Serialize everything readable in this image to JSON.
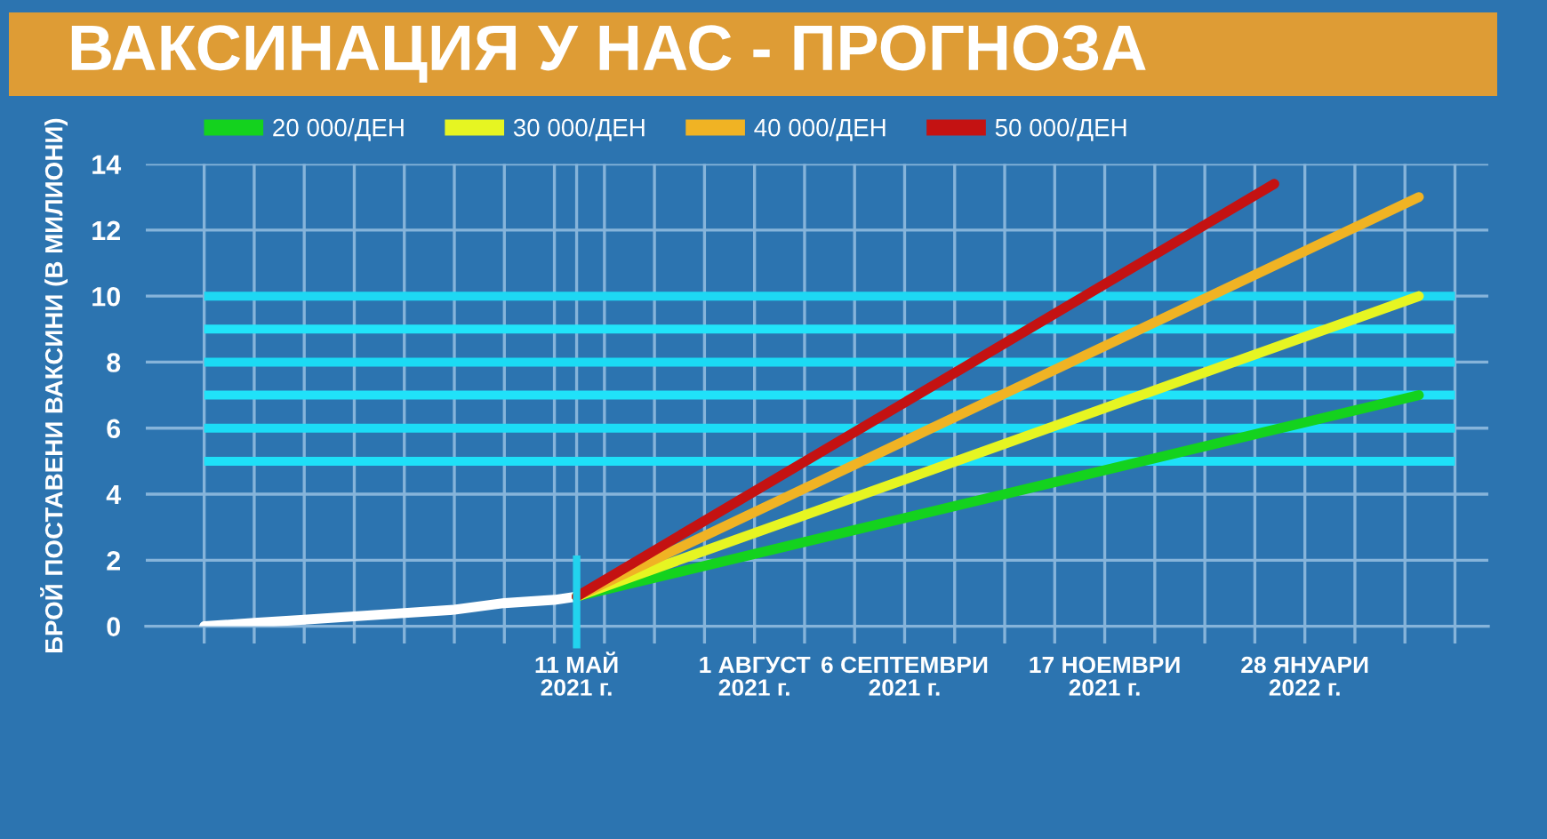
{
  "chart_data": {
    "type": "line",
    "title": "ВАКСИНАЦИЯ У НАС - ПРОГНОЗА",
    "ylabel": "БРОЙ ПОСТАВЕНИ ВАКСИНИ (В МИЛИОНИ)",
    "series": [
      {
        "color": "#ffffff",
        "x": [
          "2020-12-28",
          "2021-01-15",
          "2021-02-02",
          "2021-02-20",
          "2021-03-10",
          "2021-03-28",
          "2021-04-15",
          "2021-05-03",
          "2021-05-11"
        ],
        "values": [
          0.0,
          0.1,
          0.2,
          0.3,
          0.4,
          0.5,
          0.7,
          0.8,
          0.9
        ]
      },
      {
        "name": "20 000/ДЕН",
        "color": "#14d21e",
        "x": [
          "2021-05-11",
          "2022-03-10"
        ],
        "values": [
          0.9,
          7.0
        ]
      },
      {
        "name": "30 000/ДЕН",
        "color": "#e6f522",
        "x": [
          "2021-05-11",
          "2022-03-10"
        ],
        "values": [
          0.9,
          10.0
        ]
      },
      {
        "name": "40 000/ДЕН",
        "color": "#f0b324",
        "x": [
          "2021-05-11",
          "2022-03-10"
        ],
        "values": [
          0.9,
          13.0
        ]
      },
      {
        "name": "50 000/ДЕН",
        "color": "#c41212",
        "x": [
          "2021-05-11",
          "2022-01-17"
        ],
        "values": [
          0.9,
          13.4
        ]
      }
    ],
    "xlim": [
      "2020-12-07",
      "2022-04-04"
    ],
    "xticks": [
      {
        "value": "2020-12-28",
        "label": null
      },
      {
        "value": "2021-01-15",
        "label": null
      },
      {
        "value": "2021-02-02",
        "label": null
      },
      {
        "value": "2021-02-20",
        "label": null
      },
      {
        "value": "2021-03-10",
        "label": null
      },
      {
        "value": "2021-03-28",
        "label": null
      },
      {
        "value": "2021-04-15",
        "label": null
      },
      {
        "value": "2021-05-03",
        "label": null
      },
      {
        "value": "2021-05-11",
        "label": "11 МАЙ\n2021 г."
      },
      {
        "value": "2021-05-21",
        "label": null
      },
      {
        "value": "2021-06-08",
        "label": null
      },
      {
        "value": "2021-06-26",
        "label": null
      },
      {
        "value": "2021-07-14",
        "label": "1 АВГУСТ\n2021 г."
      },
      {
        "value": "2021-08-01",
        "label": null
      },
      {
        "value": "2021-08-19",
        "label": null
      },
      {
        "value": "2021-09-06",
        "label": "6 СЕПТЕМВРИ\n2021 г."
      },
      {
        "value": "2021-09-24",
        "label": null
      },
      {
        "value": "2021-10-12",
        "label": null
      },
      {
        "value": "2021-10-30",
        "label": null
      },
      {
        "value": "2021-11-17",
        "label": "17 НОЕМВРИ\n2021 г."
      },
      {
        "value": "2021-12-05",
        "label": null
      },
      {
        "value": "2021-12-23",
        "label": null
      },
      {
        "value": "2022-01-10",
        "label": null
      },
      {
        "value": "2022-01-28",
        "label": "28 ЯНУАРИ\n2022 г."
      },
      {
        "value": "2022-02-15",
        "label": null
      },
      {
        "value": "2022-03-05",
        "label": null
      },
      {
        "value": "2022-03-23",
        "label": null
      }
    ],
    "ylim": [
      0,
      14
    ],
    "yticks": [
      0,
      2,
      4,
      6,
      8,
      10,
      12,
      14
    ],
    "grid": true,
    "legend": "top",
    "ref_lines": [
      {
        "axis": "x",
        "value": "2021-05-11",
        "color": "#22d3ee"
      },
      {
        "axis": "y",
        "value": 5,
        "color": "#1ee0f8"
      },
      {
        "axis": "y",
        "value": 6,
        "color": "#1cdcf6"
      },
      {
        "axis": "y",
        "value": 7,
        "color": "#20e2f9"
      },
      {
        "axis": "y",
        "value": 8,
        "color": "#1bdaf4"
      },
      {
        "axis": "y",
        "value": 9,
        "color": "#21e4fa"
      },
      {
        "axis": "y",
        "value": 10,
        "color": "#1dd8f3"
      }
    ]
  }
}
